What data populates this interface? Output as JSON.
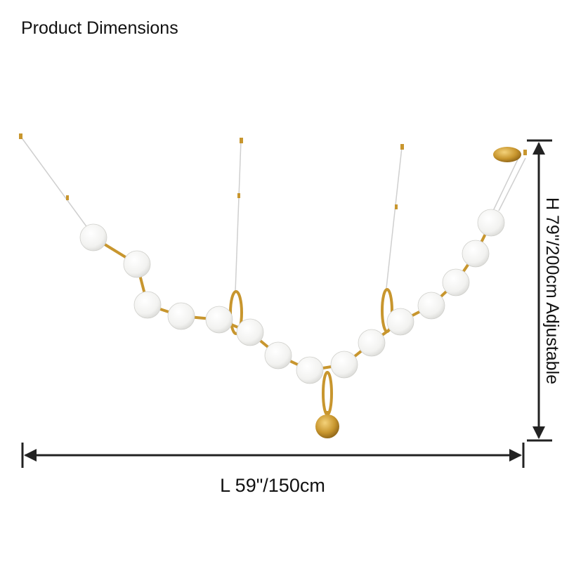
{
  "header": {
    "title": "Product Dimensions"
  },
  "dimensions": {
    "length": "L 59\"/150cm",
    "height": "H 79\"/200cm Adjustable"
  }
}
